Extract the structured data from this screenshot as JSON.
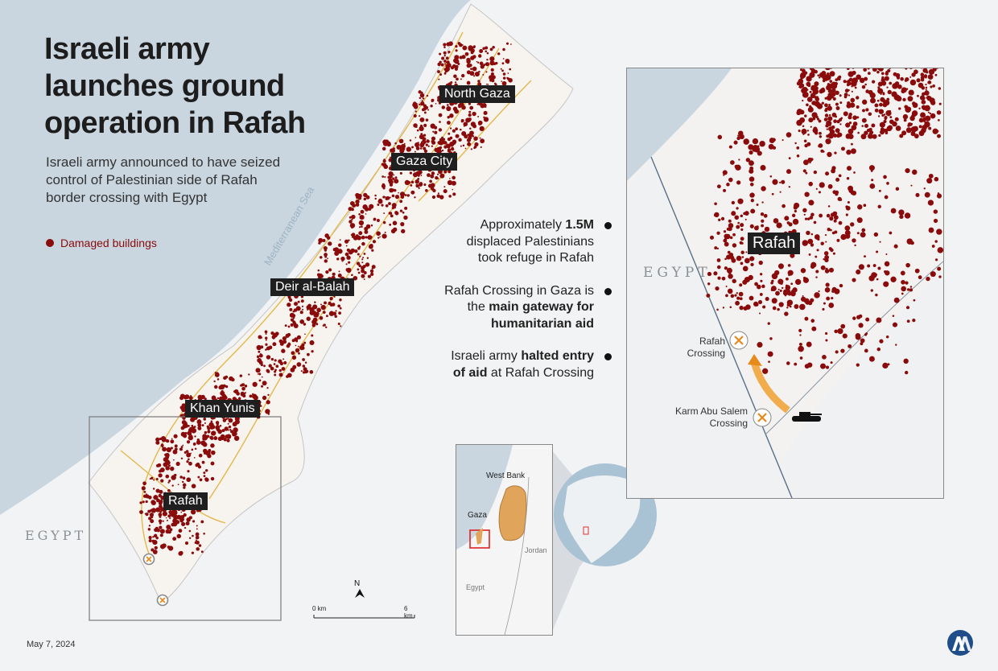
{
  "title": "Israeli army launches ground operation in Rafah",
  "subtitle": "Israeli army announced to have seized control of Palestinian side of Rafah border crossing with Egypt",
  "legend": {
    "label": "Damaged buildings",
    "color": "#8a0b0b"
  },
  "map_labels": {
    "north_gaza": "North Gaza",
    "gaza_city": "Gaza City",
    "deir_al_balah": "Deir al-Balah",
    "khan_yunis": "Khan Yunis",
    "rafah": "Rafah",
    "egypt": "EGYPT",
    "sea": "Mediterranean Sea"
  },
  "facts": [
    {
      "before": "Approximately ",
      "bold": "1.5M",
      "after": " displaced Palestinians took refuge in Rafah"
    },
    {
      "before": "Rafah Crossing in Gaza is the ",
      "bold": "main gateway for humanitarian aid",
      "after": ""
    },
    {
      "before": "Israeli army ",
      "bold": "halted entry of aid",
      "after": " at Rafah Crossing"
    }
  ],
  "inset": {
    "rafah": "Rafah",
    "egypt": "EGYPT",
    "rafah_crossing": "Rafah Crossing",
    "karm_abu_salem": "Karm Abu Salem Crossing"
  },
  "locator": {
    "west_bank": "West Bank",
    "gaza": "Gaza",
    "jordan": "Jordan",
    "egypt": "Egypt"
  },
  "scale": {
    "start": "0 km",
    "end": "6 km"
  },
  "north": "N",
  "date": "May 7, 2024",
  "colors": {
    "sea": "#c9d6e0",
    "land": "#f2f3f4",
    "damage": "#8a0b0b",
    "roads": "#e4b94a",
    "crossing": "#e8891c",
    "west_bank_fill": "#e0a45a"
  },
  "icons": {
    "crossing": "crossing-x-icon",
    "tank": "tank-icon",
    "arrow": "arrow-icon",
    "north": "north-arrow-icon",
    "logo": "aa-logo-icon"
  }
}
